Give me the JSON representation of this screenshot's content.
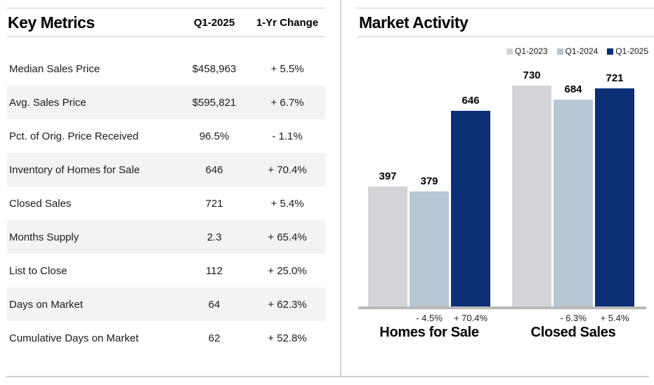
{
  "key_metrics": {
    "title": "Key Metrics",
    "columns": {
      "period": "Q1-2025",
      "change": "1-Yr Change"
    },
    "rows": [
      {
        "metric": "Median Sales Price",
        "value": "$458,963",
        "change": "+ 5.5%"
      },
      {
        "metric": "Avg. Sales Price",
        "value": "$595,821",
        "change": "+ 6.7%"
      },
      {
        "metric": "Pct. of Orig. Price Received",
        "value": "96.5%",
        "change": "- 1.1%"
      },
      {
        "metric": "Inventory of Homes for Sale",
        "value": "646",
        "change": "+ 70.4%"
      },
      {
        "metric": "Closed Sales",
        "value": "721",
        "change": "+ 5.4%"
      },
      {
        "metric": "Months Supply",
        "value": "2.3",
        "change": "+ 65.4%"
      },
      {
        "metric": "List to Close",
        "value": "112",
        "change": "+ 25.0%"
      },
      {
        "metric": "Days on Market",
        "value": "64",
        "change": "+ 62.3%"
      },
      {
        "metric": "Cumulative Days on Market",
        "value": "62",
        "change": "+ 52.8%"
      }
    ]
  },
  "market_activity": {
    "title": "Market Activity"
  },
  "chart_data": {
    "type": "bar",
    "title": "Market Activity",
    "categories": [
      "Homes for Sale",
      "Closed Sales"
    ],
    "series": [
      {
        "name": "Q1-2023",
        "color": "#d6d3d8",
        "values": [
          397,
          730
        ]
      },
      {
        "name": "Q1-2024",
        "color": "#b6c6d5",
        "values": [
          379,
          684
        ]
      },
      {
        "name": "Q1-2025",
        "color": "#0c3075",
        "values": [
          646,
          721
        ]
      }
    ],
    "change_labels": [
      [
        "",
        "- 4.5%",
        "+ 70.4%"
      ],
      [
        "",
        "- 6.3%",
        "+ 5.4%"
      ]
    ],
    "value_labels": true,
    "legend_position": "top-right",
    "grid": false,
    "value_axis_visible": false,
    "baseline_color": "#b9b9b9",
    "ylim": [
      0,
      780
    ]
  }
}
